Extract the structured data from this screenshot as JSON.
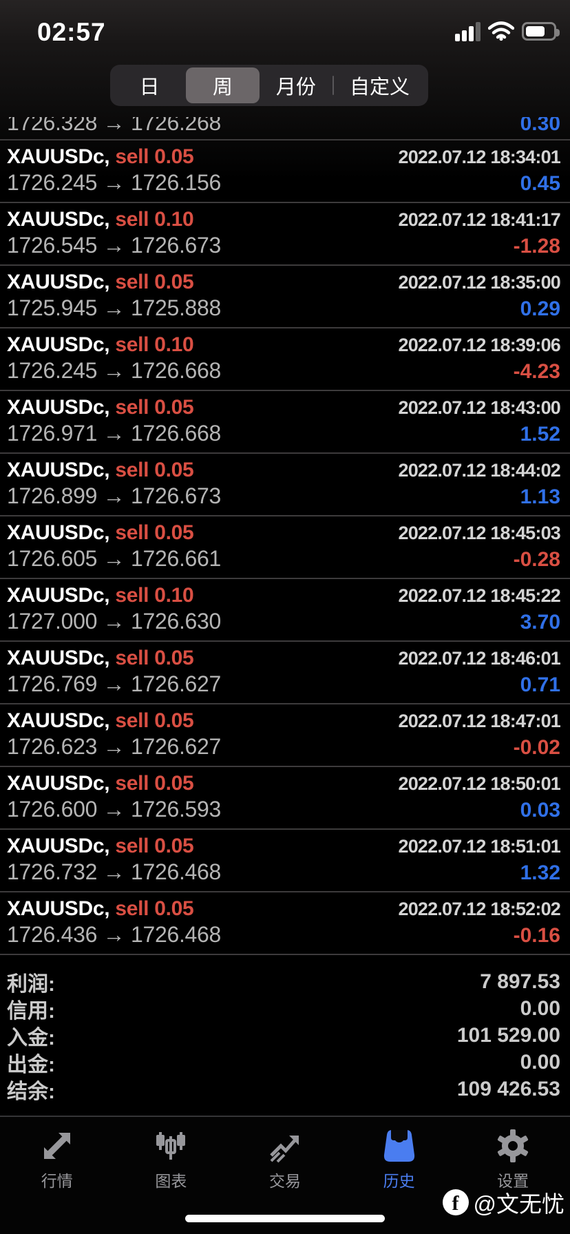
{
  "colors": {
    "profit_positive": "#3070e8",
    "loss_negative": "#d94f43",
    "accent_active_tab": "#4a7df0",
    "sell_label": "#d94f43",
    "background": "#000000"
  },
  "status_bar": {
    "time": "02:57",
    "icons": [
      "cellular-signal-icon",
      "wifi-icon",
      "battery-icon"
    ],
    "battery_level_percent": 65
  },
  "filter_tabs": {
    "options": [
      {
        "label": "日",
        "selected": false
      },
      {
        "label": "周",
        "selected": true
      },
      {
        "label": "月份",
        "selected": false
      },
      {
        "label": "自定义",
        "selected": false
      }
    ]
  },
  "partial_row": {
    "prices": "1726.328 → 1726.268",
    "profit": "0.30"
  },
  "trades": [
    {
      "symbol": "XAUUSDc,",
      "side": "sell 0.05",
      "time": "2022.07.12 18:34:01",
      "prices": "1726.245 → 1726.156",
      "profit": "0.45"
    },
    {
      "symbol": "XAUUSDc,",
      "side": "sell 0.10",
      "time": "2022.07.12 18:41:17",
      "prices": "1726.545 → 1726.673",
      "profit": "-1.28"
    },
    {
      "symbol": "XAUUSDc,",
      "side": "sell 0.05",
      "time": "2022.07.12 18:35:00",
      "prices": "1725.945 → 1725.888",
      "profit": "0.29"
    },
    {
      "symbol": "XAUUSDc,",
      "side": "sell 0.10",
      "time": "2022.07.12 18:39:06",
      "prices": "1726.245 → 1726.668",
      "profit": "-4.23"
    },
    {
      "symbol": "XAUUSDc,",
      "side": "sell 0.05",
      "time": "2022.07.12 18:43:00",
      "prices": "1726.971 → 1726.668",
      "profit": "1.52"
    },
    {
      "symbol": "XAUUSDc,",
      "side": "sell 0.05",
      "time": "2022.07.12 18:44:02",
      "prices": "1726.899 → 1726.673",
      "profit": "1.13"
    },
    {
      "symbol": "XAUUSDc,",
      "side": "sell 0.05",
      "time": "2022.07.12 18:45:03",
      "prices": "1726.605 → 1726.661",
      "profit": "-0.28"
    },
    {
      "symbol": "XAUUSDc,",
      "side": "sell 0.10",
      "time": "2022.07.12 18:45:22",
      "prices": "1727.000 → 1726.630",
      "profit": "3.70"
    },
    {
      "symbol": "XAUUSDc,",
      "side": "sell 0.05",
      "time": "2022.07.12 18:46:01",
      "prices": "1726.769 → 1726.627",
      "profit": "0.71"
    },
    {
      "symbol": "XAUUSDc,",
      "side": "sell 0.05",
      "time": "2022.07.12 18:47:01",
      "prices": "1726.623 → 1726.627",
      "profit": "-0.02"
    },
    {
      "symbol": "XAUUSDc,",
      "side": "sell 0.05",
      "time": "2022.07.12 18:50:01",
      "prices": "1726.600 → 1726.593",
      "profit": "0.03"
    },
    {
      "symbol": "XAUUSDc,",
      "side": "sell 0.05",
      "time": "2022.07.12 18:51:01",
      "prices": "1726.732 → 1726.468",
      "profit": "1.32"
    },
    {
      "symbol": "XAUUSDc,",
      "side": "sell 0.05",
      "time": "2022.07.12 18:52:02",
      "prices": "1726.436 → 1726.468",
      "profit": "-0.16"
    }
  ],
  "summary": {
    "rows": [
      {
        "label": "利润:",
        "value": "7 897.53"
      },
      {
        "label": "信用:",
        "value": "0.00"
      },
      {
        "label": "入金:",
        "value": "101 529.00"
      },
      {
        "label": "出金:",
        "value": "0.00"
      },
      {
        "label": "结余:",
        "value": "109 426.53"
      }
    ]
  },
  "tab_bar": {
    "items": [
      {
        "label": "行情",
        "icon": "quotes-icon",
        "active": false
      },
      {
        "label": "图表",
        "icon": "charts-icon",
        "active": false
      },
      {
        "label": "交易",
        "icon": "trade-icon",
        "active": false
      },
      {
        "label": "历史",
        "icon": "history-icon",
        "active": true
      },
      {
        "label": "设置",
        "icon": "settings-icon",
        "active": false
      }
    ]
  },
  "watermark": {
    "handle": "@文无忧",
    "icon": "facebook-icon"
  }
}
